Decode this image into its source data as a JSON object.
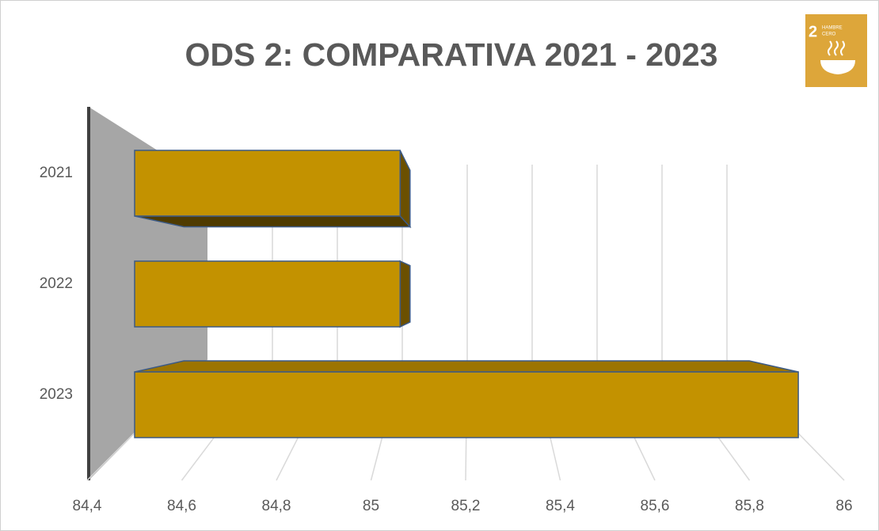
{
  "chart_data": {
    "type": "bar3d",
    "orientation": "horizontal",
    "title": "ODS 2: COMPARATIVA 2021 - 2023",
    "badge_number": "2",
    "badge_label": [
      "HAMBRE",
      "CERO"
    ],
    "categories": [
      "2021",
      "2022",
      "2023"
    ],
    "values": [
      85,
      85,
      85.9
    ],
    "color": "#c39200",
    "xlim": [
      84.4,
      86
    ],
    "xticks": [
      {
        "value": 84.4,
        "label": "84,4"
      },
      {
        "value": 84.6,
        "label": "84,6"
      },
      {
        "value": 84.8,
        "label": "84,8"
      },
      85,
      {
        "value": 85.2,
        "label": "85,2"
      },
      {
        "value": 85.4,
        "label": "85,4"
      },
      {
        "value": 85.6,
        "label": "85,6"
      },
      {
        "value": 85.8,
        "label": "85,8"
      },
      86
    ],
    "grid": true
  }
}
